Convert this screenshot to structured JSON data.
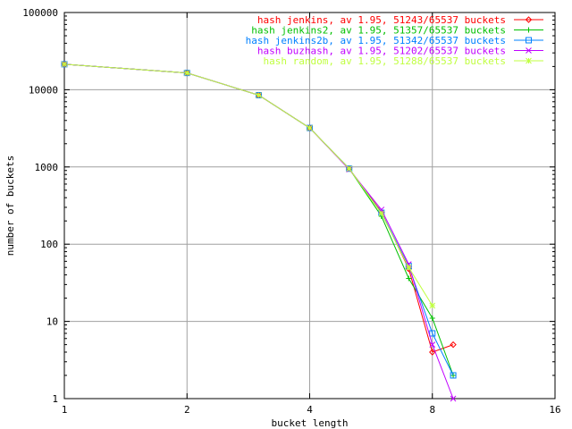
{
  "chart_data": {
    "type": "line",
    "title": "",
    "xlabel": "bucket length",
    "ylabel": "number of buckets",
    "xscale": "log2",
    "yscale": "log10",
    "xlim": [
      1,
      16
    ],
    "ylim": [
      1,
      100000
    ],
    "grid": true,
    "legend_position": "top-right",
    "x_ticks": [
      {
        "value": 1,
        "label": "1"
      },
      {
        "value": 2,
        "label": "2"
      },
      {
        "value": 4,
        "label": "4"
      },
      {
        "value": 8,
        "label": "8"
      },
      {
        "value": 16,
        "label": "16"
      }
    ],
    "y_ticks": [
      {
        "value": 1,
        "label": "1"
      },
      {
        "value": 10,
        "label": "10"
      },
      {
        "value": 100,
        "label": "100"
      },
      {
        "value": 1000,
        "label": "1000"
      },
      {
        "value": 10000,
        "label": "10000"
      },
      {
        "value": 100000,
        "label": "100000"
      }
    ],
    "series": [
      {
        "name": "hash jenkins, av 1.95, 51243/65537 buckets",
        "color": "#ff0000",
        "marker": "diamond",
        "points": [
          [
            1,
            21400
          ],
          [
            2,
            16500
          ],
          [
            3,
            8500
          ],
          [
            4,
            3200
          ],
          [
            5,
            950
          ],
          [
            6,
            260
          ],
          [
            7,
            48
          ],
          [
            8,
            4
          ],
          [
            9,
            5
          ]
        ]
      },
      {
        "name": "hash jenkins2, av 1.95, 51357/65537 buckets",
        "color": "#00c000",
        "marker": "plus",
        "points": [
          [
            1,
            21400
          ],
          [
            2,
            16500
          ],
          [
            3,
            8500
          ],
          [
            4,
            3200
          ],
          [
            5,
            950
          ],
          [
            6,
            230
          ],
          [
            7,
            36
          ],
          [
            8,
            11
          ],
          [
            9,
            2
          ]
        ]
      },
      {
        "name": "hash jenkins2b, av 1.95, 51342/65537 buckets",
        "color": "#0080ff",
        "marker": "square",
        "points": [
          [
            1,
            21400
          ],
          [
            2,
            16500
          ],
          [
            3,
            8500
          ],
          [
            4,
            3200
          ],
          [
            5,
            950
          ],
          [
            6,
            255
          ],
          [
            7,
            52
          ],
          [
            8,
            7
          ],
          [
            9,
            2
          ]
        ]
      },
      {
        "name": "hash buzhash, av 1.95, 51202/65537 buckets",
        "color": "#c000ff",
        "marker": "cross",
        "points": [
          [
            1,
            21400
          ],
          [
            2,
            16500
          ],
          [
            3,
            8500
          ],
          [
            4,
            3200
          ],
          [
            5,
            930
          ],
          [
            6,
            280
          ],
          [
            7,
            55
          ],
          [
            8,
            5
          ],
          [
            9,
            1
          ]
        ]
      },
      {
        "name": "hash random, av 1.95, 51288/65537 buckets",
        "color": "#c0ff40",
        "marker": "star",
        "points": [
          [
            1,
            21400
          ],
          [
            2,
            16500
          ],
          [
            3,
            8500
          ],
          [
            4,
            3200
          ],
          [
            5,
            950
          ],
          [
            6,
            250
          ],
          [
            7,
            50
          ],
          [
            8,
            16
          ]
        ]
      }
    ]
  }
}
